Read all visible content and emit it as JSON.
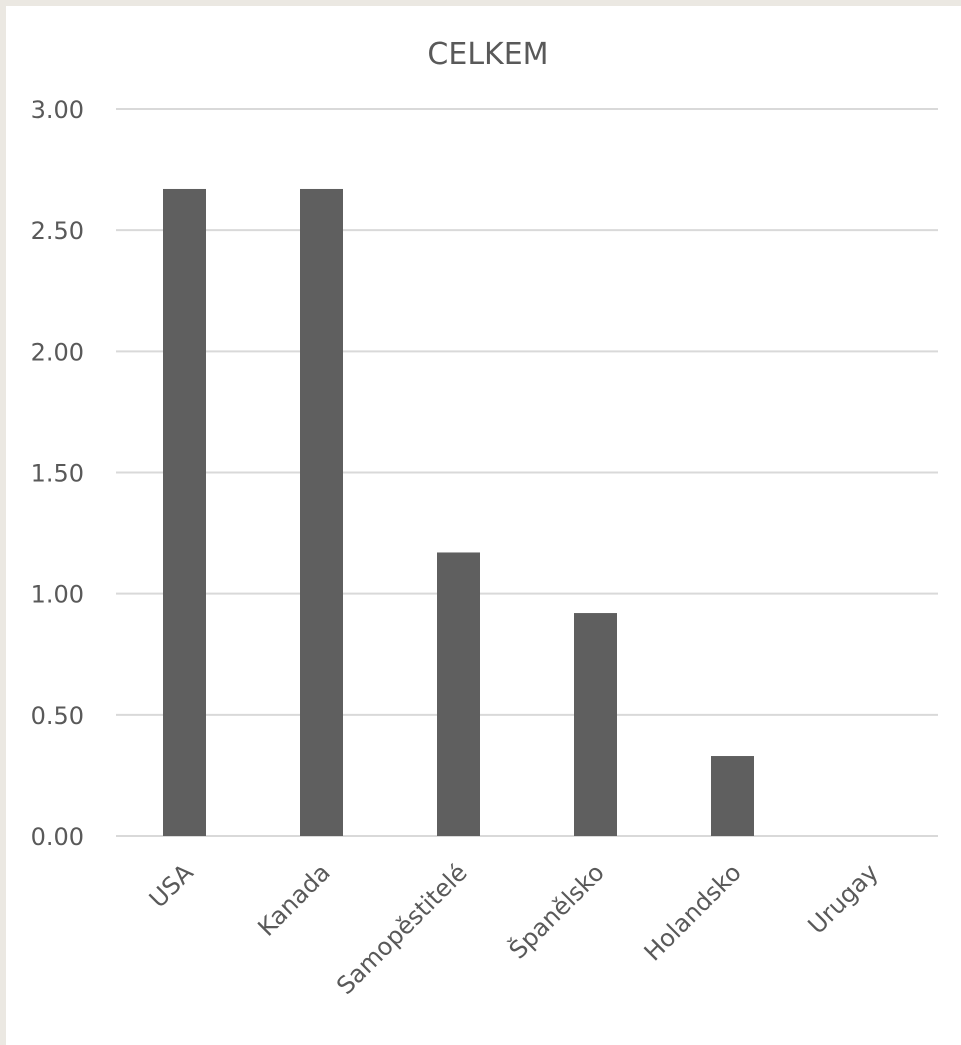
{
  "chart_data": {
    "type": "bar",
    "title": "CELKEM",
    "xlabel": "",
    "ylabel": "",
    "categories": [
      "USA",
      "Kanada",
      "Samopěstitelé",
      "Španělsko",
      "Holandsko",
      "Urugay"
    ],
    "values": [
      2.67,
      2.67,
      1.17,
      0.92,
      0.33,
      0.0
    ],
    "ylim": [
      0,
      3
    ],
    "yticks": [
      "0.00",
      "0.50",
      "1.00",
      "1.50",
      "2.00",
      "2.50",
      "3.00"
    ],
    "grid": true,
    "legend": "none",
    "bar_color": "#5f5f5f",
    "grid_color": "#d9d9d9",
    "text_color": "#595959"
  }
}
